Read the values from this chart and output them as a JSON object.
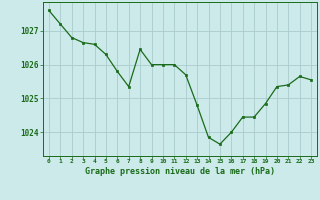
{
  "hours": [
    0,
    1,
    2,
    3,
    4,
    5,
    6,
    7,
    8,
    9,
    10,
    11,
    12,
    13,
    14,
    15,
    16,
    17,
    18,
    19,
    20,
    21,
    22,
    23
  ],
  "pressure": [
    1027.6,
    1027.2,
    1026.8,
    1026.65,
    1026.6,
    1026.3,
    1025.8,
    1025.35,
    1026.45,
    1026.0,
    1026.0,
    1026.0,
    1025.7,
    1024.8,
    1023.85,
    1023.65,
    1024.0,
    1024.45,
    1024.45,
    1024.85,
    1025.35,
    1025.4,
    1025.65,
    1025.55
  ],
  "line_color": "#1a6b1a",
  "marker_color": "#1a6b1a",
  "bg_color": "#cceaea",
  "grid_color": "#aacccc",
  "xlabel": "Graphe pression niveau de la mer (hPa)",
  "xlabel_color": "#1a6b1a",
  "tick_color": "#1a6b1a",
  "ylim_min": 1023.3,
  "ylim_max": 1027.85,
  "yticks": [
    1024,
    1025,
    1026,
    1027
  ],
  "xlim_min": -0.5,
  "xlim_max": 23.5
}
